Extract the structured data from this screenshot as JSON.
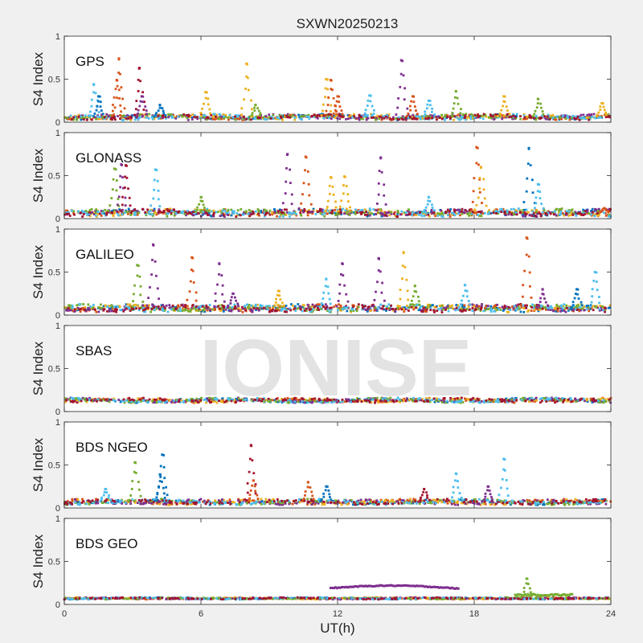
{
  "figure": {
    "title": "SXWN20250213",
    "xlabel": "UT(h)",
    "ylabel": "S4 Index",
    "watermark": "IONISE"
  },
  "colors": [
    "#0072bd",
    "#d95319",
    "#edb120",
    "#7e2f8e",
    "#77ac30",
    "#4dbeee",
    "#a2142f"
  ],
  "chart_data": [
    {
      "type": "scatter",
      "panel_label": "GPS",
      "xlim": [
        0,
        24
      ],
      "ylim": [
        0,
        1
      ],
      "xticks": [
        0,
        6,
        12,
        18,
        24
      ],
      "yticks": [
        0,
        0.5,
        1
      ],
      "baseline": 0.06,
      "noise": 0.03,
      "spikes": [
        [
          1.3,
          0.44,
          5
        ],
        [
          1.5,
          0.3,
          0
        ],
        [
          2.4,
          0.74,
          1
        ],
        [
          2.3,
          0.49,
          1
        ],
        [
          3.3,
          0.63,
          6
        ],
        [
          3.4,
          0.3,
          3
        ],
        [
          4.2,
          0.2,
          0
        ],
        [
          6.2,
          0.35,
          2
        ],
        [
          8.0,
          0.68,
          2
        ],
        [
          8.4,
          0.2,
          4
        ],
        [
          11.5,
          0.5,
          2
        ],
        [
          11.7,
          0.49,
          1
        ],
        [
          12.0,
          0.3,
          1
        ],
        [
          13.4,
          0.31,
          5
        ],
        [
          14.8,
          0.72,
          3
        ],
        [
          15.3,
          0.3,
          1
        ],
        [
          16.0,
          0.25,
          5
        ],
        [
          17.2,
          0.36,
          4
        ],
        [
          19.3,
          0.3,
          2
        ],
        [
          20.8,
          0.27,
          4
        ],
        [
          23.6,
          0.22,
          2
        ]
      ]
    },
    {
      "type": "scatter",
      "panel_label": "GLONASS",
      "xlim": [
        0,
        24
      ],
      "ylim": [
        0,
        1
      ],
      "xticks": [
        0,
        6,
        12,
        18,
        24
      ],
      "yticks": [
        0,
        0.5,
        1
      ],
      "baseline": 0.07,
      "noise": 0.04,
      "spikes": [
        [
          2.2,
          0.58,
          4
        ],
        [
          2.5,
          0.63,
          3
        ],
        [
          2.7,
          0.62,
          6
        ],
        [
          4.0,
          0.57,
          5
        ],
        [
          6.0,
          0.25,
          4
        ],
        [
          9.8,
          0.75,
          3
        ],
        [
          10.6,
          0.72,
          1
        ],
        [
          11.7,
          0.48,
          2
        ],
        [
          12.3,
          0.49,
          2
        ],
        [
          13.9,
          0.71,
          3
        ],
        [
          16.0,
          0.25,
          5
        ],
        [
          18.1,
          0.83,
          1
        ],
        [
          18.3,
          0.6,
          2
        ],
        [
          20.4,
          0.82,
          0
        ],
        [
          20.8,
          0.4,
          5
        ],
        [
          23.7,
          0.12,
          1
        ]
      ]
    },
    {
      "type": "scatter",
      "panel_label": "GALILEO",
      "xlim": [
        0,
        24
      ],
      "ylim": [
        0,
        1
      ],
      "xticks": [
        0,
        6,
        12,
        18,
        24
      ],
      "yticks": [
        0,
        0.5,
        1
      ],
      "baseline": 0.08,
      "noise": 0.04,
      "spikes": [
        [
          3.2,
          0.58,
          4
        ],
        [
          3.9,
          0.82,
          3
        ],
        [
          5.6,
          0.67,
          1
        ],
        [
          6.8,
          0.6,
          3
        ],
        [
          7.4,
          0.25,
          3
        ],
        [
          9.4,
          0.28,
          2
        ],
        [
          11.5,
          0.42,
          5
        ],
        [
          12.2,
          0.6,
          3
        ],
        [
          13.8,
          0.66,
          3
        ],
        [
          14.9,
          0.73,
          2
        ],
        [
          15.4,
          0.34,
          4
        ],
        [
          17.6,
          0.35,
          5
        ],
        [
          20.3,
          0.9,
          1
        ],
        [
          21.0,
          0.3,
          3
        ],
        [
          22.5,
          0.3,
          0
        ],
        [
          23.3,
          0.5,
          5
        ]
      ]
    },
    {
      "type": "scatter",
      "panel_label": "SBAS",
      "xlim": [
        0,
        24
      ],
      "ylim": [
        0,
        1
      ],
      "xticks": [
        0,
        6,
        12,
        18,
        24
      ],
      "yticks": [
        0,
        0.5,
        1
      ],
      "baseline": 0.13,
      "noise": 0.025,
      "spikes": []
    },
    {
      "type": "scatter",
      "panel_label": "BDS NGEO",
      "xlim": [
        0,
        24
      ],
      "ylim": [
        0,
        1
      ],
      "xticks": [
        0,
        6,
        12,
        18,
        24
      ],
      "yticks": [
        0,
        0.5,
        1
      ],
      "baseline": 0.07,
      "noise": 0.03,
      "spikes": [
        [
          1.8,
          0.22,
          5
        ],
        [
          3.1,
          0.53,
          4
        ],
        [
          4.3,
          0.62,
          0
        ],
        [
          4.2,
          0.39,
          0
        ],
        [
          8.2,
          0.73,
          6
        ],
        [
          8.3,
          0.32,
          1
        ],
        [
          10.7,
          0.3,
          1
        ],
        [
          11.5,
          0.25,
          0
        ],
        [
          15.8,
          0.22,
          6
        ],
        [
          17.2,
          0.4,
          5
        ],
        [
          18.6,
          0.25,
          3
        ],
        [
          19.3,
          0.57,
          5
        ]
      ]
    },
    {
      "type": "scatter",
      "panel_label": "BDS GEO",
      "xlim": [
        0,
        24
      ],
      "ylim": [
        0,
        1
      ],
      "xticks": [
        0,
        6,
        12,
        18,
        24
      ],
      "yticks": [
        0,
        0.5,
        1
      ],
      "baseline": 0.07,
      "noise": 0.01,
      "arc": {
        "x0": 11.7,
        "x1": 17.3,
        "y0": 0.19,
        "ymid": 0.22,
        "y1": 0.18,
        "color": 3
      },
      "segment": {
        "x0": 19.8,
        "x1": 22.3,
        "y": 0.11,
        "color": 4
      },
      "spikes": [
        [
          20.3,
          0.3,
          4
        ]
      ]
    }
  ]
}
